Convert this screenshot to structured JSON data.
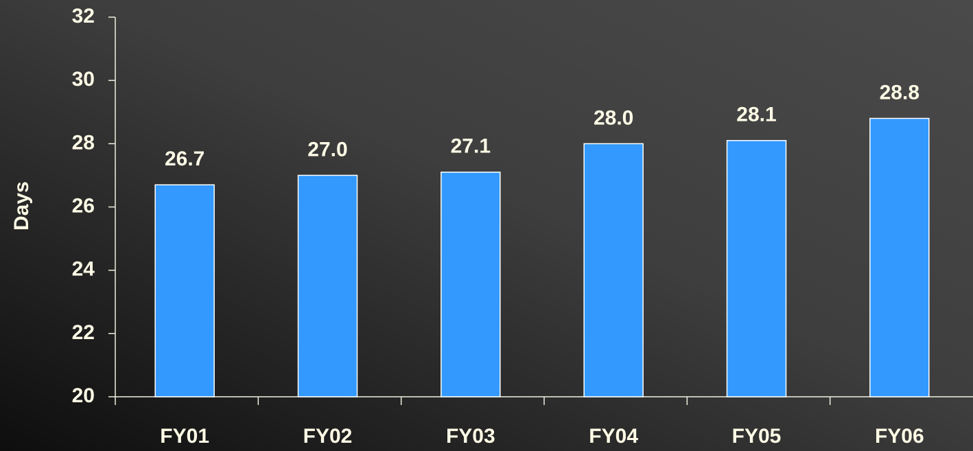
{
  "chart_data": {
    "type": "bar",
    "y_label": "Days",
    "categories": [
      "FY01",
      "FY02",
      "FY03",
      "FY04",
      "FY05",
      "FY06"
    ],
    "values": [
      26.7,
      27,
      27.1,
      28,
      28.1,
      28.8
    ],
    "value_labels": [
      "26.7",
      "27.0",
      "27.1",
      "28.0",
      "28.1",
      "28.8"
    ],
    "color": "#3399ff",
    "ylim": [
      20,
      32
    ],
    "yticks": [
      20,
      22,
      24,
      26,
      28,
      30,
      32
    ],
    "grid": false
  }
}
